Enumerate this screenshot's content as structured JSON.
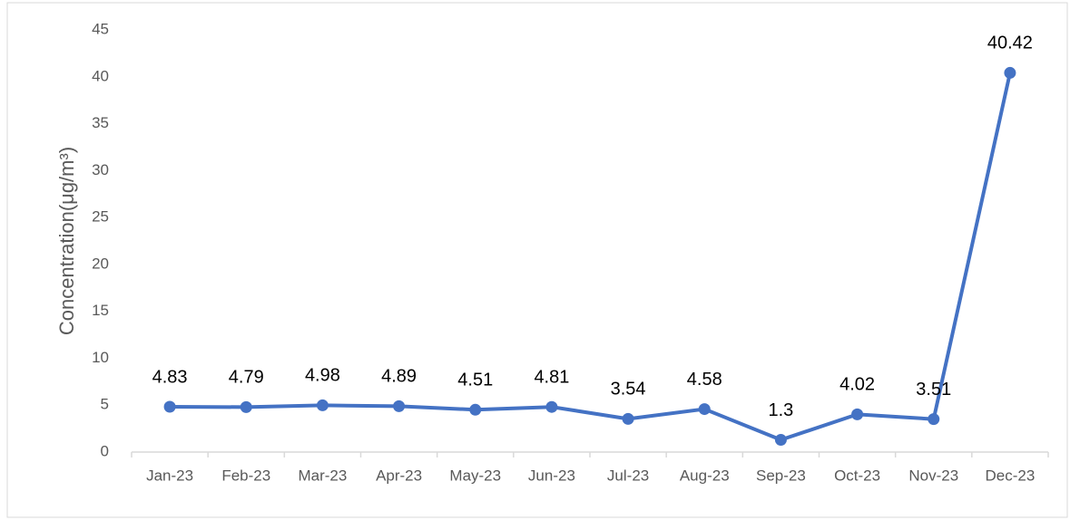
{
  "chart_data": {
    "type": "line",
    "y_label": "Concentration(μg/m³)",
    "categories": [
      "Jan-23",
      "Feb-23",
      "Mar-23",
      "Apr-23",
      "May-23",
      "Jun-23",
      "Jul-23",
      "Aug-23",
      "Sep-23",
      "Oct-23",
      "Nov-23",
      "Dec-23"
    ],
    "series": [
      {
        "color": "#4472c4",
        "values": [
          4.83,
          4.79,
          4.98,
          4.89,
          4.51,
          4.81,
          3.54,
          4.58,
          1.3,
          4.02,
          3.51,
          40.42
        ]
      }
    ],
    "ylim": [
      0,
      45
    ],
    "yticks": [
      0,
      5,
      10,
      15,
      20,
      25,
      30,
      35,
      40,
      45
    ],
    "grid": false
  }
}
